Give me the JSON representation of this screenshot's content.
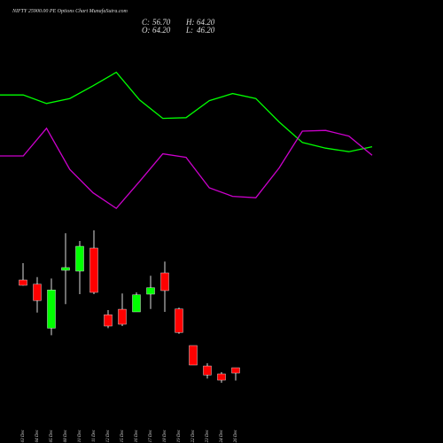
{
  "chart_data": [
    {
      "type": "candlestick",
      "title": "NIFTY 25900.00 PE Options Chart MunafaSutra.com",
      "summary": [
        {
          "label": "C:",
          "value": "56.70"
        },
        {
          "label": "H:",
          "value": "64.20"
        },
        {
          "label": "O:",
          "value": "64.20"
        },
        {
          "label": "L:",
          "value": "46.20"
        }
      ],
      "categories": [
        "03 Dec",
        "04 Dec",
        "05 Dec",
        "08 Dec",
        "10 Dec",
        "11 Dec",
        "12 Dec",
        "15 Dec",
        "16 Dec",
        "17 Dec",
        "18 Dec",
        "19 Dec",
        "22 Dec",
        "23 Dec",
        "24 Dec",
        "26 Dec"
      ],
      "open": [
        188,
        182,
        120,
        201.7,
        200.5,
        233,
        139,
        146.7,
        143,
        168,
        198,
        147,
        95.5,
        66.7,
        55.5,
        64.2
      ],
      "high": [
        211.7,
        192,
        190,
        254,
        243,
        258,
        145.5,
        169,
        170.5,
        194,
        214,
        149,
        95.5,
        70.5,
        58,
        64.2
      ],
      "low": [
        180,
        142,
        110,
        154,
        168,
        168,
        120,
        123,
        143,
        147,
        143,
        112,
        68,
        49,
        43,
        46.2
      ],
      "close": [
        180.5,
        159,
        174,
        205.5,
        235.5,
        170.5,
        123,
        125.5,
        167,
        177,
        173,
        114,
        68,
        54,
        46.7,
        56.7
      ],
      "up_color": "#00ff00",
      "down_color": "#ff0000",
      "ylim": [
        -42,
        583
      ]
    },
    {
      "type": "line",
      "categories": [
        null,
        null,
        null,
        null,
        null,
        null,
        null,
        null,
        null,
        null,
        null,
        null,
        null,
        null,
        null,
        null,
        null
      ],
      "series": [
        {
          "color": "#00ff00",
          "values": [
            449,
            449,
            437,
            444,
            462,
            481,
            442,
            416,
            417,
            441,
            451,
            444,
            411,
            382,
            374,
            369,
            376
          ]
        },
        {
          "color": "#cc00cc",
          "values": [
            363,
            363,
            402,
            344,
            311,
            289,
            327,
            366,
            361,
            318,
            306,
            304,
            346,
            398,
            399,
            391,
            364
          ]
        }
      ],
      "ylim": [
        -42,
        583
      ]
    }
  ]
}
